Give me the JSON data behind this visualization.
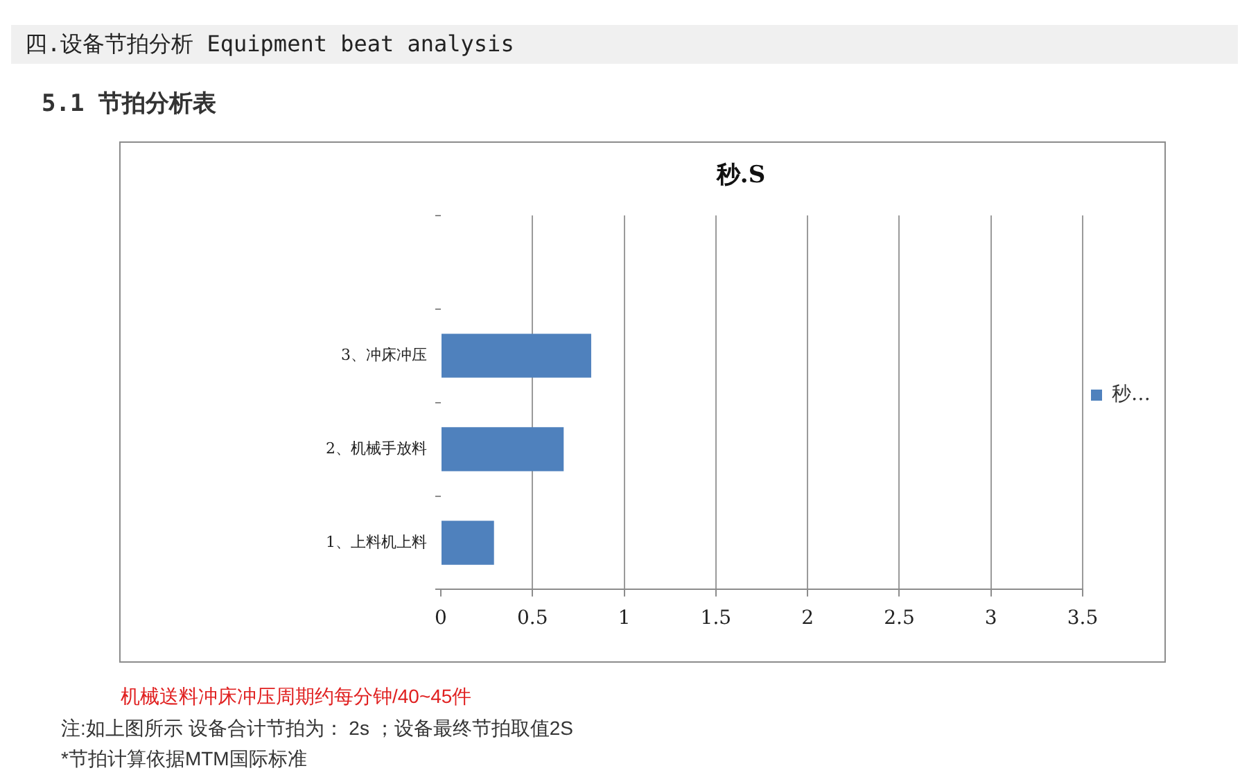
{
  "chart_data": {
    "type": "bar",
    "orientation": "horizontal",
    "title": "秒.S",
    "categories": [
      null,
      "3、冲床冲压",
      "2、机械手放料",
      "1、上料机上料"
    ],
    "series": [
      {
        "name": "秒…",
        "color": "#4f81bd",
        "values": [
          null,
          0.82,
          0.67,
          0.29
        ]
      }
    ],
    "xlim": [
      0,
      3.5
    ],
    "xticks": [
      0,
      0.5,
      1,
      1.5,
      2,
      2.5,
      3,
      3.5
    ],
    "grid": "x",
    "legend": "right",
    "annotations": [
      "四.设备节拍分析 Equipment beat analysis",
      "5.1 节拍分析表",
      "机械送料冲床冲压周期约每分钟/40~45件",
      "注:如上图所示  设备合计节拍为：  2s ；设备最终节拍取值2S",
      "*节拍计算依据MTM国际标准"
    ]
  }
}
